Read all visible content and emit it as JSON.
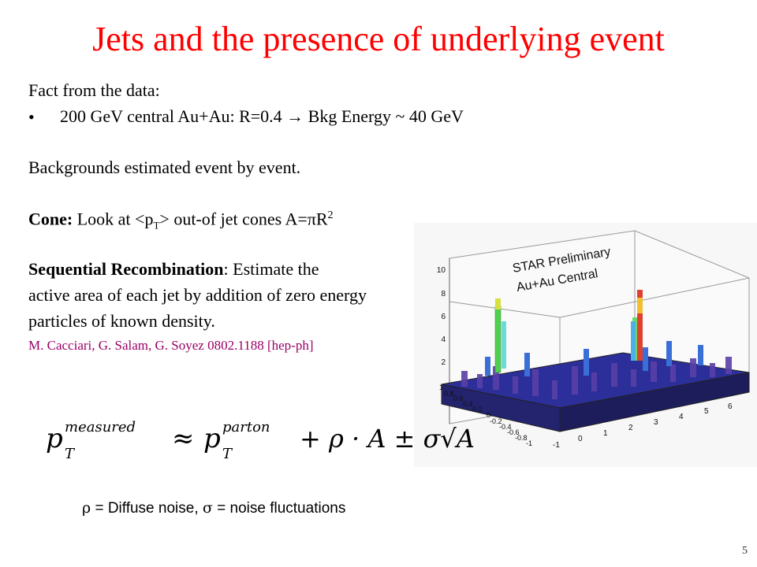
{
  "title": "Jets and the presence of underlying event",
  "fact_heading": "Fact from the data:",
  "bullet_text": "200 GeV central Au+Au: R=0.4 → Bkg Energy ~ 40 GeV",
  "backgrounds_line": "Backgrounds estimated event by event.",
  "cone_label": "Cone:",
  "cone_text_a": " Look at <p",
  "cone_sub": "T",
  "cone_text_b": "> out-of jet cones A=πR",
  "cone_sup": "2",
  "seq_label": "Sequential Recombination",
  "seq_rest": ": Estimate the",
  "seq_line2": "active area of each jet by addition of zero energy",
  "seq_line3": "particles of known density.",
  "reference": "M. Cacciari, G. Salam, G. Soyez  0802.1188 [hep-ph]",
  "formula": {
    "p": "p",
    "sup_measured": "measured",
    "sub_T": "T",
    "approx": "≈",
    "sup_parton": "parton",
    "rest": "+ ρ · A ± σ√A"
  },
  "plot": {
    "label1": "STAR Preliminary",
    "label2": "Au+Au Central",
    "z_ticks": [
      "2",
      "4",
      "6",
      "8",
      "10"
    ],
    "x_ticks": [
      "-1",
      "0",
      "1",
      "2",
      "3",
      "4",
      "5",
      "6"
    ],
    "y_ticks": [
      "1",
      "0.8",
      "0.6",
      "0.4",
      "0.2",
      "0",
      "-0.2",
      "-0.4",
      "-0.6",
      "-0.8",
      "-1"
    ]
  },
  "caption_rho": "ρ",
  "caption_mid": " = Diffuse noise,  ",
  "caption_sigma": "σ",
  "caption_end": " = noise fluctuations",
  "page_number": "5"
}
